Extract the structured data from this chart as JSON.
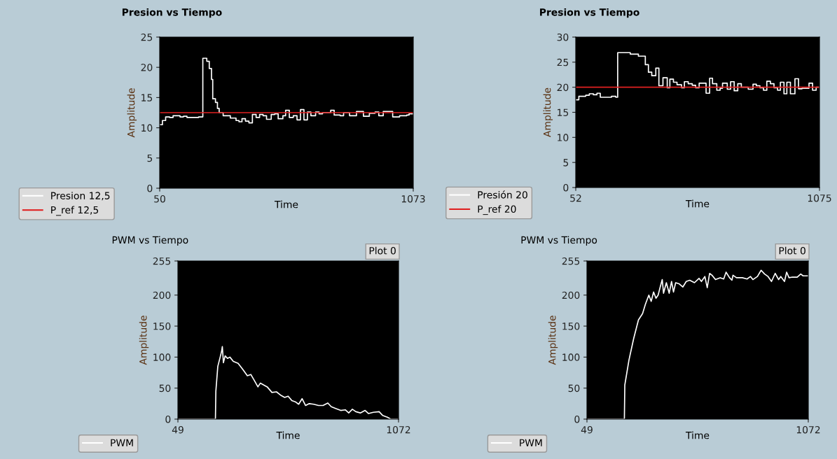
{
  "chart_data": [
    {
      "type": "step",
      "title": "Presion vs Tiempo",
      "xlabel": "Time",
      "ylabel": "Amplitude",
      "xlim": [
        50,
        1073
      ],
      "ylim": [
        0,
        25
      ],
      "xticks": [
        50,
        1073
      ],
      "yticks": [
        0,
        5,
        10,
        15,
        20,
        25
      ],
      "legend": "bottom left",
      "series": [
        {
          "name": "Presion 12,5",
          "color": "#ffffff",
          "x": [
            50,
            61,
            74,
            90,
            104,
            132,
            146,
            160,
            207,
            224,
            240,
            250,
            259,
            264,
            275,
            283,
            290,
            306,
            335,
            358,
            370,
            382,
            396,
            410,
            424,
            439,
            453,
            467,
            481,
            500,
            514,
            528,
            547,
            558,
            573,
            589,
            604,
            618,
            632,
            646,
            660,
            679,
            693,
            707,
            740,
            754,
            778,
            792,
            816,
            844,
            872,
            896,
            919,
            934,
            952,
            990,
            1018,
            1047,
            1056,
            1073
          ],
          "values": [
            10.5,
            11.2,
            11.8,
            11.7,
            12.0,
            11.8,
            11.9,
            11.7,
            11.8,
            21.5,
            21.0,
            19.8,
            18.0,
            14.8,
            14.2,
            13.2,
            12.5,
            12.0,
            11.6,
            11.2,
            11.0,
            11.5,
            11.1,
            10.8,
            12.2,
            11.7,
            12.2,
            12.0,
            11.4,
            12.2,
            12.3,
            11.5,
            12.0,
            12.9,
            11.7,
            12.0,
            11.3,
            13.0,
            11.3,
            12.6,
            12.0,
            12.6,
            12.3,
            12.5,
            12.9,
            12.1,
            12.0,
            12.5,
            12.0,
            12.7,
            11.9,
            12.4,
            12.6,
            12.0,
            12.7,
            11.8,
            12.0,
            12.1,
            12.3,
            12.3
          ]
        },
        {
          "name": "P_ref 12,5",
          "color": "#e02020",
          "x": [
            50,
            1073
          ],
          "values": [
            12.5,
            12.5
          ]
        }
      ]
    },
    {
      "type": "step",
      "title": "Presion vs Tiempo",
      "xlabel": "Time",
      "ylabel": "Amplitude",
      "xlim": [
        52,
        1075
      ],
      "ylim": [
        0,
        30
      ],
      "xticks": [
        52,
        1075
      ],
      "yticks": [
        0,
        5,
        10,
        15,
        20,
        25,
        30
      ],
      "legend": "bottom left",
      "series": [
        {
          "name": "Presión 20",
          "color": "#ffffff",
          "x": [
            52,
            65,
            94,
            109,
            126,
            141,
            155,
            202,
            220,
            228,
            281,
            315,
            344,
            357,
            371,
            388,
            401,
            418,
            436,
            447,
            462,
            477,
            496,
            508,
            524,
            541,
            555,
            570,
            599,
            614,
            626,
            644,
            658,
            668,
            688,
            702,
            717,
            732,
            747,
            776,
            796,
            810,
            825,
            840,
            854,
            869,
            884,
            899,
            911,
            926,
            938,
            953,
            972,
            987,
            1002,
            1031,
            1046,
            1061,
            1075
          ],
          "values": [
            17.5,
            18.2,
            18.4,
            18.7,
            18.5,
            18.8,
            18.0,
            18.2,
            18.0,
            26.9,
            26.6,
            26.2,
            24.5,
            23.0,
            22.3,
            23.8,
            20.3,
            21.9,
            19.9,
            21.6,
            21.0,
            20.5,
            19.9,
            21.1,
            20.7,
            20.4,
            19.9,
            20.8,
            18.8,
            21.8,
            20.7,
            19.4,
            19.8,
            20.8,
            19.6,
            21.1,
            19.3,
            20.7,
            20.0,
            19.6,
            20.6,
            20.3,
            19.9,
            19.4,
            21.2,
            20.7,
            19.9,
            19.4,
            21.0,
            18.7,
            21.0,
            18.7,
            21.7,
            19.7,
            19.8,
            20.8,
            19.4,
            20.0,
            20.0
          ]
        },
        {
          "name": "P_ref 20",
          "color": "#e02020",
          "x": [
            52,
            1075
          ],
          "values": [
            20,
            20
          ]
        }
      ]
    },
    {
      "type": "line",
      "title": "PWM vs Tiempo",
      "xlabel": "Time",
      "ylabel": "Amplitude",
      "xlim": [
        49,
        1072
      ],
      "ylim": [
        0,
        255
      ],
      "xticks": [
        49,
        1072
      ],
      "yticks": [
        0,
        50,
        100,
        150,
        200,
        255
      ],
      "legend": "bottom left",
      "annotations": [
        "Plot 0"
      ],
      "series": [
        {
          "name": "PWM",
          "color": "#ffffff",
          "x": [
            49,
            223,
            225,
            234,
            245,
            252,
            255,
            260,
            268,
            279,
            290,
            306,
            328,
            350,
            371,
            387,
            404,
            420,
            431,
            447,
            463,
            485,
            506,
            528,
            544,
            560,
            577,
            593,
            609,
            625,
            641,
            658,
            679,
            701,
            722,
            744,
            760,
            782,
            804,
            825,
            841,
            858,
            874,
            895,
            917,
            933,
            955,
            982,
            998,
            1020,
            1036,
            1072
          ],
          "values": [
            0,
            0,
            45,
            85,
            100,
            110,
            117,
            91,
            102,
            98,
            100,
            93,
            90,
            80,
            70,
            72,
            62,
            52,
            58,
            55,
            52,
            43,
            44,
            38,
            35,
            37,
            30,
            28,
            24,
            33,
            22,
            25,
            24,
            22,
            22,
            26,
            20,
            17,
            14,
            15,
            10,
            16,
            12,
            10,
            14,
            9,
            11,
            12,
            6,
            3,
            0,
            0
          ]
        }
      ]
    },
    {
      "type": "line",
      "title": "PWM vs Tiempo",
      "xlabel": "Time",
      "ylabel": "Amplitude",
      "xlim": [
        49,
        1072
      ],
      "ylim": [
        0,
        255
      ],
      "xticks": [
        49,
        1072
      ],
      "yticks": [
        0,
        50,
        100,
        150,
        200,
        255
      ],
      "legend": "bottom left",
      "annotations": [
        "Plot 0"
      ],
      "series": [
        {
          "name": "PWM",
          "color": "#ffffff",
          "x": [
            49,
            222,
            224,
            243,
            265,
            287,
            306,
            319,
            335,
            346,
            357,
            368,
            378,
            389,
            397,
            403,
            416,
            429,
            440,
            449,
            459,
            476,
            492,
            508,
            524,
            546,
            567,
            578,
            594,
            605,
            616,
            627,
            643,
            665,
            681,
            692,
            708,
            719,
            724,
            740,
            767,
            789,
            805,
            816,
            837,
            854,
            870,
            886,
            902,
            919,
            935,
            945,
            962,
            972,
            983,
            999,
            1021,
            1037,
            1048,
            1072
          ],
          "values": [
            0,
            0,
            55,
            95,
            130,
            160,
            170,
            185,
            200,
            190,
            205,
            195,
            200,
            215,
            225,
            203,
            220,
            203,
            222,
            205,
            220,
            218,
            213,
            222,
            224,
            220,
            227,
            222,
            230,
            212,
            235,
            232,
            225,
            228,
            226,
            237,
            228,
            224,
            232,
            228,
            228,
            226,
            230,
            225,
            230,
            240,
            234,
            230,
            222,
            235,
            225,
            230,
            222,
            237,
            228,
            229,
            229,
            234,
            231,
            231
          ]
        }
      ]
    }
  ]
}
